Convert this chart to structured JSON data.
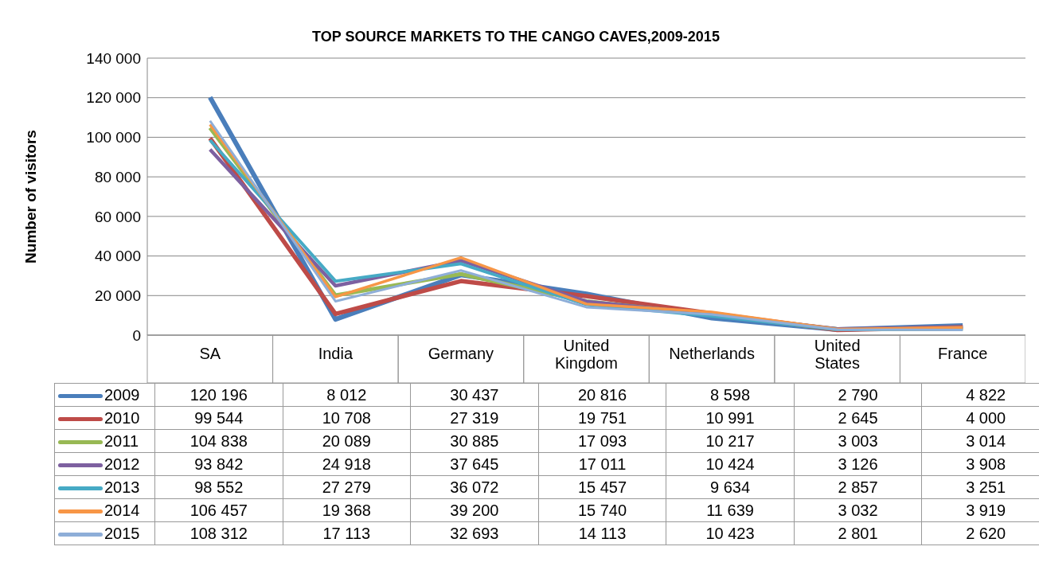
{
  "chart_data": {
    "type": "line",
    "title": "TOP SOURCE MARKETS TO THE CANGO CAVES,2009-2015",
    "ylabel": "Number of visitors",
    "categories": [
      "SA",
      "India",
      "Germany",
      "United Kingdom",
      "Netherlands",
      "United States",
      "France"
    ],
    "series": [
      {
        "name": "2009",
        "color": "#4a7ebb",
        "values": [
          120196,
          8012,
          30437,
          20816,
          8598,
          2790,
          4822
        ]
      },
      {
        "name": "2010",
        "color": "#be4b48",
        "values": [
          99544,
          10708,
          27319,
          19751,
          10991,
          2645,
          4000
        ]
      },
      {
        "name": "2011",
        "color": "#98b954",
        "values": [
          104838,
          20089,
          30885,
          17093,
          10217,
          3003,
          3014
        ]
      },
      {
        "name": "2012",
        "color": "#7d60a0",
        "values": [
          93842,
          24918,
          37645,
          17011,
          10424,
          3126,
          3908
        ]
      },
      {
        "name": "2013",
        "color": "#46aac5",
        "values": [
          98552,
          27279,
          36072,
          15457,
          9634,
          2857,
          3251
        ]
      },
      {
        "name": "2014",
        "color": "#f79646",
        "values": [
          106457,
          19368,
          39200,
          15740,
          11639,
          3032,
          3919
        ]
      },
      {
        "name": "2015",
        "color": "#8eaed8",
        "values": [
          108312,
          17113,
          32693,
          14113,
          10423,
          2801,
          2620
        ]
      }
    ],
    "ylim": [
      0,
      140000
    ],
    "yticks": [
      {
        "value": 0,
        "label": "0"
      },
      {
        "value": 20000,
        "label": "20 000"
      },
      {
        "value": 40000,
        "label": "40 000"
      },
      {
        "value": 60000,
        "label": "60 000"
      },
      {
        "value": 80000,
        "label": "80 000"
      },
      {
        "value": 100000,
        "label": "100 000"
      },
      {
        "value": 120000,
        "label": "120 000"
      },
      {
        "value": 140000,
        "label": "140 000"
      }
    ],
    "grid": "y",
    "legend": "bottom",
    "marker": "none",
    "line_style": "solid",
    "data_labels": true
  }
}
